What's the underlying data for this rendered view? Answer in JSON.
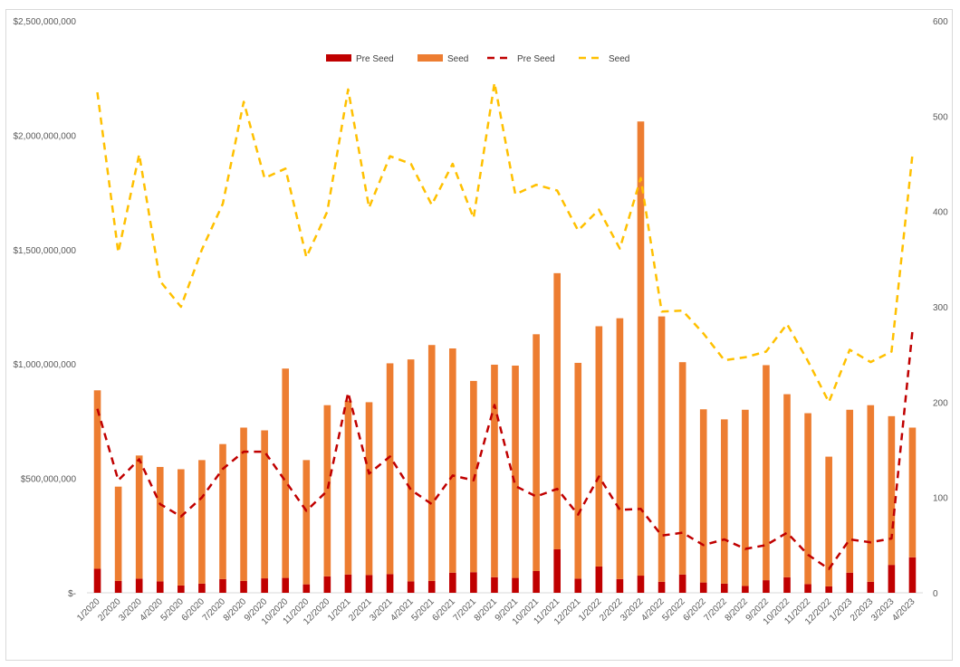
{
  "chart_data": {
    "type": "bar",
    "categories": [
      "1/2020",
      "2/2020",
      "3/2020",
      "4/2020",
      "5/2020",
      "6/2020",
      "7/2020",
      "8/2020",
      "9/2020",
      "10/2020",
      "11/2020",
      "12/2020",
      "1/2021",
      "2/2021",
      "3/2021",
      "4/2021",
      "5/2021",
      "6/2021",
      "7/2021",
      "8/2021",
      "9/2021",
      "10/2021",
      "11/2021",
      "12/2021",
      "1/2022",
      "2/2022",
      "3/2022",
      "4/2022",
      "5/2022",
      "6/2022",
      "7/2022",
      "8/2022",
      "9/2022",
      "10/2022",
      "11/2022",
      "12/2022",
      "1/2023",
      "2/2023",
      "3/2023",
      "4/2023"
    ],
    "y_left": {
      "ylim": [
        0,
        2500000000
      ],
      "ticks": [
        0,
        500000000,
        1000000000,
        1500000000,
        2000000000,
        2500000000
      ],
      "tick_labels": [
        "$-",
        "$500,000,000",
        "$1,000,000,000",
        "$1,500,000,000",
        "$2,000,000,000",
        "$2,500,000,000"
      ]
    },
    "y_right": {
      "ylim": [
        0,
        600
      ],
      "ticks": [
        0,
        100,
        200,
        300,
        400,
        500,
        600
      ],
      "tick_labels": [
        "0",
        "100",
        "200",
        "300",
        "400",
        "500",
        "600"
      ]
    },
    "legend_position": "top",
    "series": [
      {
        "name": "Pre Seed",
        "kind": "stacked-bar",
        "axis": "left",
        "color": "#c00000",
        "values": [
          105000000,
          52000000,
          62000000,
          50000000,
          32000000,
          40000000,
          60000000,
          52000000,
          63000000,
          65000000,
          37000000,
          72000000,
          80000000,
          78000000,
          82000000,
          50000000,
          52000000,
          88000000,
          90000000,
          68000000,
          65000000,
          95000000,
          190000000,
          62000000,
          115000000,
          60000000,
          75000000,
          48000000,
          80000000,
          45000000,
          40000000,
          30000000,
          55000000,
          68000000,
          38000000,
          28000000,
          88000000,
          48000000,
          122000000,
          155000000
        ]
      },
      {
        "name": "Seed",
        "kind": "stacked-bar",
        "axis": "left",
        "color": "#ed7d31",
        "values": [
          780000000,
          412000000,
          538000000,
          500000000,
          508000000,
          540000000,
          590000000,
          670000000,
          647000000,
          915000000,
          543000000,
          748000000,
          760000000,
          755000000,
          921000000,
          970000000,
          1031000000,
          980000000,
          836000000,
          929000000,
          928000000,
          1035000000,
          1207000000,
          943000000,
          1050000000,
          1140000000,
          1985000000,
          1160000000,
          928000000,
          757000000,
          718000000,
          770000000,
          940000000,
          800000000,
          747000000,
          567000000,
          712000000,
          772000000,
          650000000,
          567000000
        ]
      },
      {
        "name": "Pre Seed",
        "kind": "line",
        "axis": "right",
        "color": "#c00000",
        "dash": true,
        "values": [
          193,
          118,
          140,
          93,
          80,
          100,
          130,
          148,
          148,
          117,
          86,
          107,
          210,
          125,
          143,
          108,
          93,
          123,
          118,
          197,
          112,
          101,
          109,
          82,
          122,
          87,
          88,
          60,
          63,
          50,
          56,
          46,
          50,
          63,
          40,
          25,
          56,
          53,
          57,
          275
        ]
      },
      {
        "name": "Seed",
        "kind": "line",
        "axis": "right",
        "color": "#ffc000",
        "dash": true,
        "values": [
          525,
          357,
          460,
          327,
          300,
          360,
          408,
          515,
          435,
          445,
          352,
          400,
          528,
          404,
          458,
          450,
          407,
          450,
          393,
          535,
          418,
          428,
          422,
          380,
          402,
          361,
          435,
          295,
          296,
          272,
          244,
          247,
          253,
          282,
          243,
          200,
          255,
          242,
          253,
          460
        ]
      }
    ]
  }
}
